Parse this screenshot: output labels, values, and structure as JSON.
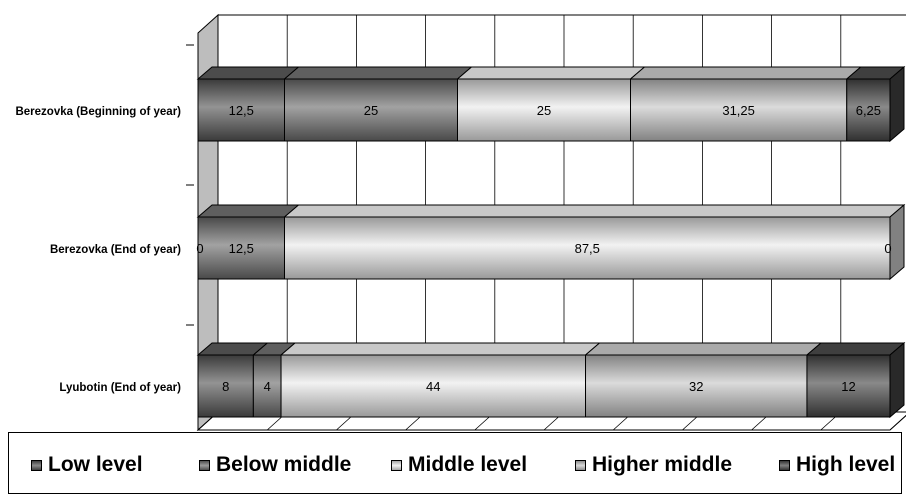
{
  "chart_data": {
    "type": "bar",
    "orientation": "horizontal",
    "stacked": true,
    "percent_stacked": true,
    "three_d": true,
    "grid": true,
    "legend_position": "bottom",
    "categories": [
      "Lyubotin (End of year)",
      "Berezovka (End of year)",
      "Berezovka (Beginning of year)"
    ],
    "series": [
      {
        "name": "Low level",
        "color": "#595959",
        "values": [
          8,
          0,
          12.5
        ],
        "labels": [
          "8",
          "0",
          "12,5"
        ]
      },
      {
        "name": "Below middle",
        "color": "#707070",
        "values": [
          4,
          12.5,
          25
        ],
        "labels": [
          "4",
          "12,5",
          "25"
        ]
      },
      {
        "name": "Middle level",
        "color": "#ebebeb",
        "values": [
          44,
          87.5,
          25
        ],
        "labels": [
          "44",
          "87,5",
          "25"
        ]
      },
      {
        "name": "Higher middle",
        "color": "#c8c8c8",
        "values": [
          32,
          0,
          31.25
        ],
        "labels": [
          "32",
          "",
          "31,25"
        ]
      },
      {
        "name": "High level",
        "color": "#4a4a4a",
        "values": [
          12,
          0,
          6.25
        ],
        "labels": [
          "12",
          "0",
          "6,25"
        ]
      }
    ],
    "xlim": [
      0,
      100
    ],
    "title": "",
    "xlabel": "",
    "ylabel": ""
  }
}
